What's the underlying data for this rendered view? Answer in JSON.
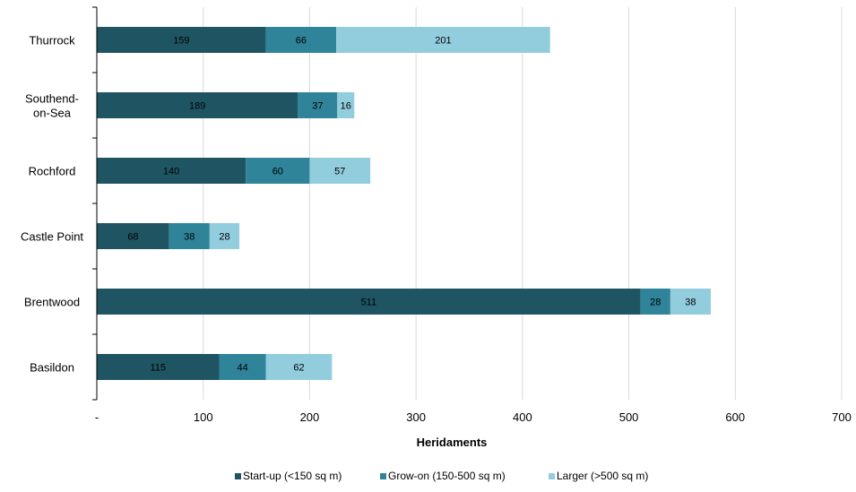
{
  "chart_data": {
    "type": "bar",
    "orientation": "horizontal",
    "stacked": true,
    "categories": [
      "Thurrock",
      "Southend-on-Sea",
      "Rochford",
      "Castle Point",
      "Brentwood",
      "Basildon"
    ],
    "category_lines": [
      [
        "Thurrock"
      ],
      [
        "Southend-",
        "on-Sea"
      ],
      [
        "Rochford"
      ],
      [
        "Castle Point"
      ],
      [
        "Brentwood"
      ],
      [
        "Basildon"
      ]
    ],
    "series": [
      {
        "name": "Start-up (<150 sq m)",
        "color": "#1f5563",
        "values": [
          159,
          189,
          140,
          68,
          511,
          115
        ]
      },
      {
        "name": "Grow-on (150-500 sq m)",
        "color": "#2f849a",
        "values": [
          66,
          37,
          60,
          38,
          28,
          44
        ]
      },
      {
        "name": "Larger (>500 sq m)",
        "color": "#92cddd",
        "values": [
          201,
          16,
          57,
          28,
          38,
          62
        ]
      }
    ],
    "x_ticks": [
      0,
      100,
      200,
      300,
      400,
      500,
      600,
      700
    ],
    "x_tick_labels": [
      "-",
      "100",
      "200",
      "300",
      "400",
      "500",
      "600",
      "700"
    ],
    "xlim": [
      0,
      700
    ],
    "xlabel": "Heridaments",
    "ylabel": "",
    "title": "",
    "grid": true,
    "legend_position": "bottom"
  }
}
